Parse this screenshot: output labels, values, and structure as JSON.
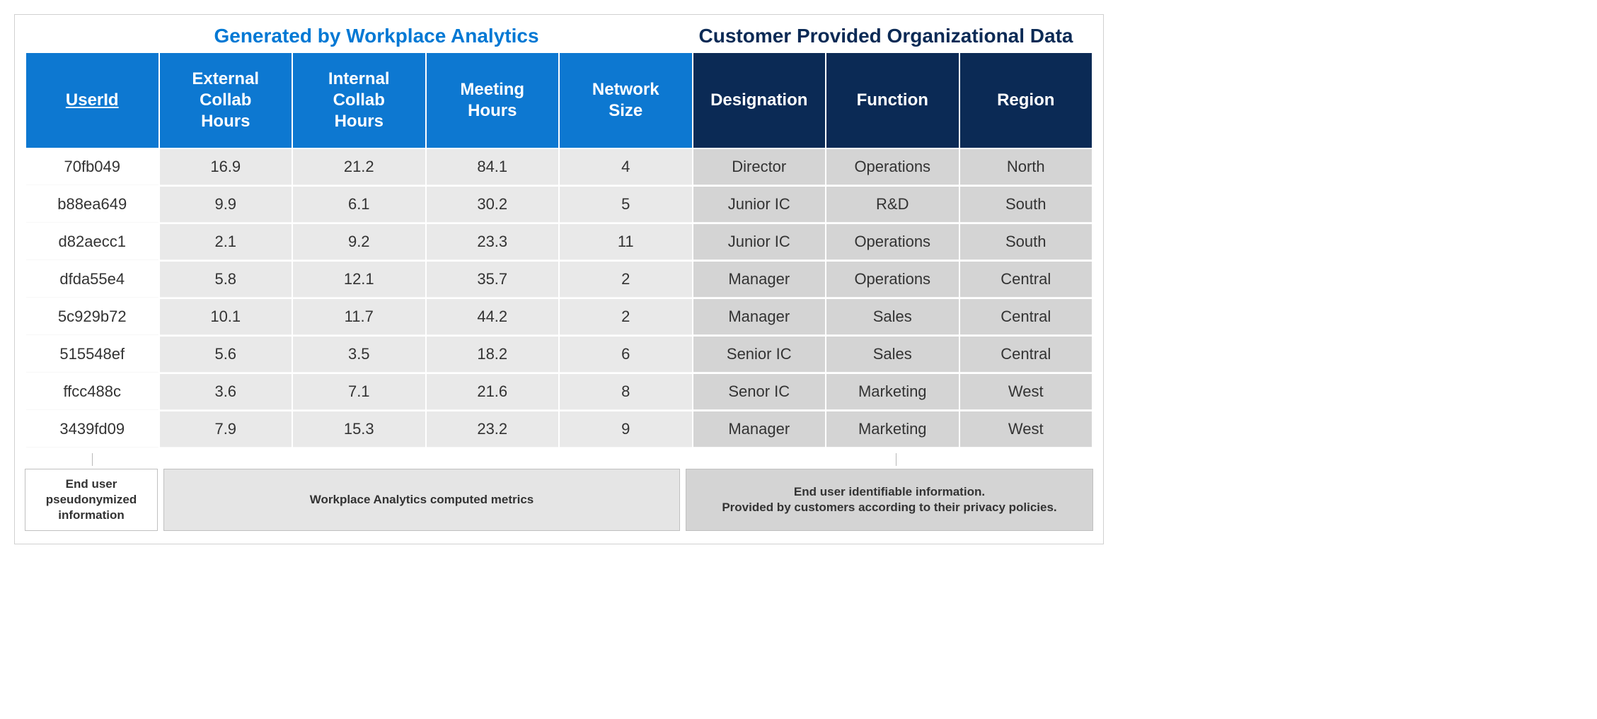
{
  "titles": {
    "left": "Generated by Workplace Analytics",
    "right": "Customer Provided Organizational Data"
  },
  "colors": {
    "title_left": "#0078d4",
    "title_right": "#0b2a55",
    "header_blue": "#0d78d1",
    "header_navy": "#0b2a55",
    "cell_white": "#ffffff",
    "cell_light": "#e9e9e9",
    "cell_dark": "#d4d4d4",
    "border": "#d0d0d0"
  },
  "table": {
    "type": "table",
    "columns": [
      {
        "label": "UserId",
        "group": "analytics",
        "shade": "white",
        "underline": true
      },
      {
        "label": "External Collab Hours",
        "group": "analytics",
        "shade": "light"
      },
      {
        "label": "Internal Collab Hours",
        "group": "analytics",
        "shade": "light"
      },
      {
        "label": "Meeting Hours",
        "group": "analytics",
        "shade": "light"
      },
      {
        "label": "Network Size",
        "group": "analytics",
        "shade": "light"
      },
      {
        "label": "Designation",
        "group": "customer",
        "shade": "dark"
      },
      {
        "label": "Function",
        "group": "customer",
        "shade": "dark"
      },
      {
        "label": "Region",
        "group": "customer",
        "shade": "dark"
      }
    ],
    "rows": [
      [
        "70fb049",
        "16.9",
        "21.2",
        "84.1",
        "4",
        "Director",
        "Operations",
        "North"
      ],
      [
        "b88ea649",
        "9.9",
        "6.1",
        "30.2",
        "5",
        "Junior IC",
        "R&D",
        "South"
      ],
      [
        "d82aecc1",
        "2.1",
        "9.2",
        "23.3",
        "11",
        "Junior IC",
        "Operations",
        "South"
      ],
      [
        "dfda55e4",
        "5.8",
        "12.1",
        "35.7",
        "2",
        "Manager",
        "Operations",
        "Central"
      ],
      [
        "5c929b72",
        "10.1",
        "11.7",
        "44.2",
        "2",
        "Manager",
        "Sales",
        "Central"
      ],
      [
        "515548ef",
        "5.6",
        "3.5",
        "18.2",
        "6",
        "Senior IC",
        "Sales",
        "Central"
      ],
      [
        "ffcc488c",
        "3.6",
        "7.1",
        "21.6",
        "8",
        "Senor IC",
        "Marketing",
        "West"
      ],
      [
        "3439fd09",
        "7.9",
        "15.3",
        "23.2",
        "9",
        "Manager",
        "Marketing",
        "West"
      ]
    ]
  },
  "legend": {
    "a": "End user pseudonymized information",
    "b": "Workplace Analytics computed metrics",
    "c_line1": "End user identifiable information.",
    "c_line2": "Provided by customers according to their privacy policies."
  },
  "tick_left_pct": 6.3,
  "tick_right_pct": 81.5
}
